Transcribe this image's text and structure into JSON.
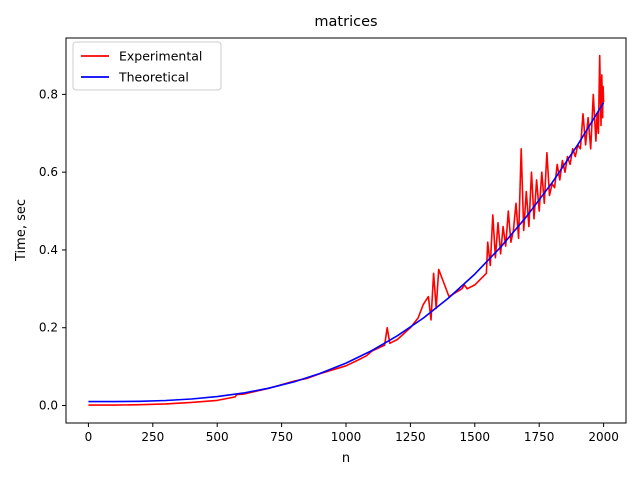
{
  "chart_data": {
    "type": "line",
    "title": "matrices",
    "xlabel": "n",
    "ylabel": "Time, sec",
    "xlim": [
      -87,
      2087
    ],
    "ylim": [
      -0.045,
      0.945
    ],
    "xticks": [
      0,
      250,
      500,
      750,
      1000,
      1250,
      1500,
      1750,
      2000
    ],
    "yticks": [
      0.0,
      0.2,
      0.4,
      0.6,
      0.8
    ],
    "xtick_labels": [
      "0",
      "250",
      "500",
      "750",
      "1000",
      "1250",
      "1500",
      "1750",
      "2000"
    ],
    "ytick_labels": [
      "0.0",
      "0.2",
      "0.4",
      "0.6",
      "0.8"
    ],
    "grid": false,
    "legend_position": "upper left",
    "series": [
      {
        "name": "Experimental",
        "color": "#ff0000",
        "x": [
          0,
          100,
          200,
          300,
          400,
          500,
          570,
          575,
          600,
          700,
          800,
          850,
          900,
          1000,
          1050,
          1080,
          1100,
          1150,
          1160,
          1170,
          1200,
          1250,
          1280,
          1300,
          1320,
          1330,
          1340,
          1350,
          1360,
          1400,
          1450,
          1460,
          1470,
          1500,
          1530,
          1545,
          1550,
          1560,
          1570,
          1580,
          1590,
          1600,
          1610,
          1620,
          1630,
          1640,
          1650,
          1660,
          1670,
          1680,
          1690,
          1700,
          1710,
          1720,
          1730,
          1740,
          1750,
          1760,
          1770,
          1780,
          1790,
          1800,
          1810,
          1820,
          1830,
          1840,
          1850,
          1860,
          1870,
          1880,
          1890,
          1900,
          1910,
          1920,
          1930,
          1940,
          1950,
          1960,
          1970,
          1975,
          1980,
          1985,
          1990,
          1993,
          1996,
          1998,
          2000
        ],
        "y": [
          0.001,
          0.001,
          0.002,
          0.004,
          0.008,
          0.013,
          0.022,
          0.028,
          0.029,
          0.044,
          0.063,
          0.07,
          0.082,
          0.102,
          0.118,
          0.128,
          0.14,
          0.155,
          0.2,
          0.16,
          0.17,
          0.2,
          0.225,
          0.26,
          0.28,
          0.22,
          0.34,
          0.25,
          0.35,
          0.28,
          0.3,
          0.31,
          0.3,
          0.31,
          0.33,
          0.34,
          0.42,
          0.36,
          0.49,
          0.38,
          0.47,
          0.39,
          0.46,
          0.41,
          0.5,
          0.42,
          0.45,
          0.52,
          0.43,
          0.66,
          0.45,
          0.55,
          0.46,
          0.6,
          0.48,
          0.58,
          0.5,
          0.6,
          0.52,
          0.65,
          0.54,
          0.57,
          0.56,
          0.62,
          0.58,
          0.63,
          0.6,
          0.64,
          0.62,
          0.66,
          0.64,
          0.67,
          0.66,
          0.75,
          0.67,
          0.74,
          0.66,
          0.8,
          0.68,
          0.75,
          0.7,
          0.9,
          0.72,
          0.85,
          0.74,
          0.82,
          0.78
        ]
      },
      {
        "name": "Theoretical",
        "color": "#0000ff",
        "x": [
          0,
          100,
          200,
          300,
          400,
          500,
          600,
          700,
          800,
          900,
          1000,
          1100,
          1200,
          1300,
          1400,
          1500,
          1600,
          1700,
          1800,
          1900,
          2000
        ],
        "y": [
          0.01,
          0.0101,
          0.0109,
          0.0129,
          0.0168,
          0.0229,
          0.032,
          0.0446,
          0.0613,
          0.0825,
          0.109,
          0.1411,
          0.1795,
          0.2248,
          0.2774,
          0.338,
          0.4071,
          0.4852,
          0.5729,
          0.6707,
          0.779
        ]
      }
    ]
  }
}
